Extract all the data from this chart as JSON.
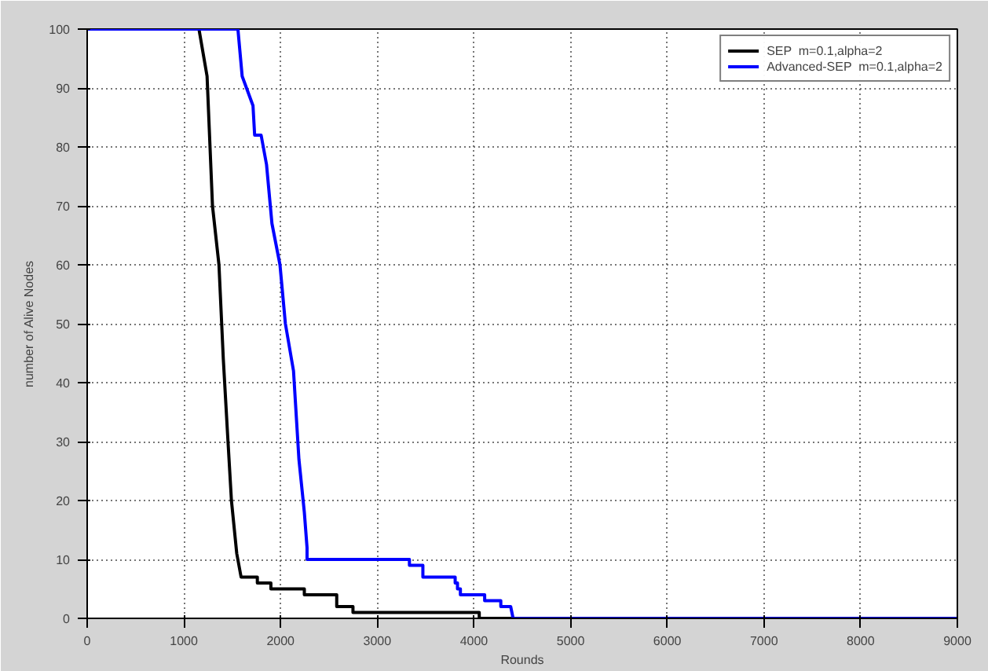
{
  "chart_data": {
    "type": "line",
    "xlabel": "Rounds",
    "ylabel": "number of Alive Nodes",
    "xlim": [
      0,
      9000
    ],
    "ylim": [
      0,
      100
    ],
    "xticks": [
      0,
      1000,
      2000,
      3000,
      4000,
      5000,
      6000,
      7000,
      8000,
      9000
    ],
    "yticks": [
      0,
      10,
      20,
      30,
      40,
      50,
      60,
      70,
      80,
      90,
      100
    ],
    "grid": true,
    "legend": "top right",
    "line_style": "solid",
    "series": [
      {
        "name": "SEP  m=0.1,alpha=2",
        "color": "#000000",
        "x": [
          0,
          1156,
          1240,
          1296,
          1363,
          1408,
          1453,
          1492,
          1547,
          1592,
          1760,
          1760,
          1900,
          1900,
          2246,
          2246,
          2581,
          2581,
          2749,
          2749,
          4055,
          4055,
          9000
        ],
        "values": [
          100,
          100,
          92,
          70,
          60,
          44,
          31,
          20,
          11,
          7,
          7,
          6,
          6,
          5,
          5,
          4,
          4,
          2,
          2,
          1,
          1,
          0,
          0
        ]
      },
      {
        "name": "Advanced-SEP  m=0.1,alpha=2",
        "color": "#0000ff",
        "x": [
          0,
          1559,
          1603,
          1715,
          1732,
          1799,
          1855,
          1911,
          1994,
          2050,
          2134,
          2190,
          2246,
          2274,
          2274,
          3333,
          3333,
          3472,
          3472,
          3806,
          3806,
          3830,
          3830,
          3860,
          3860,
          4111,
          4111,
          4278,
          4278,
          4380,
          4405,
          9000
        ],
        "values": [
          100,
          100,
          92,
          87,
          82,
          82,
          77,
          67,
          60,
          50,
          42,
          27,
          18,
          12,
          10,
          10,
          9,
          9,
          7,
          7,
          6,
          6,
          5,
          5,
          4,
          4,
          3,
          3,
          2,
          2,
          0,
          0
        ]
      }
    ]
  }
}
